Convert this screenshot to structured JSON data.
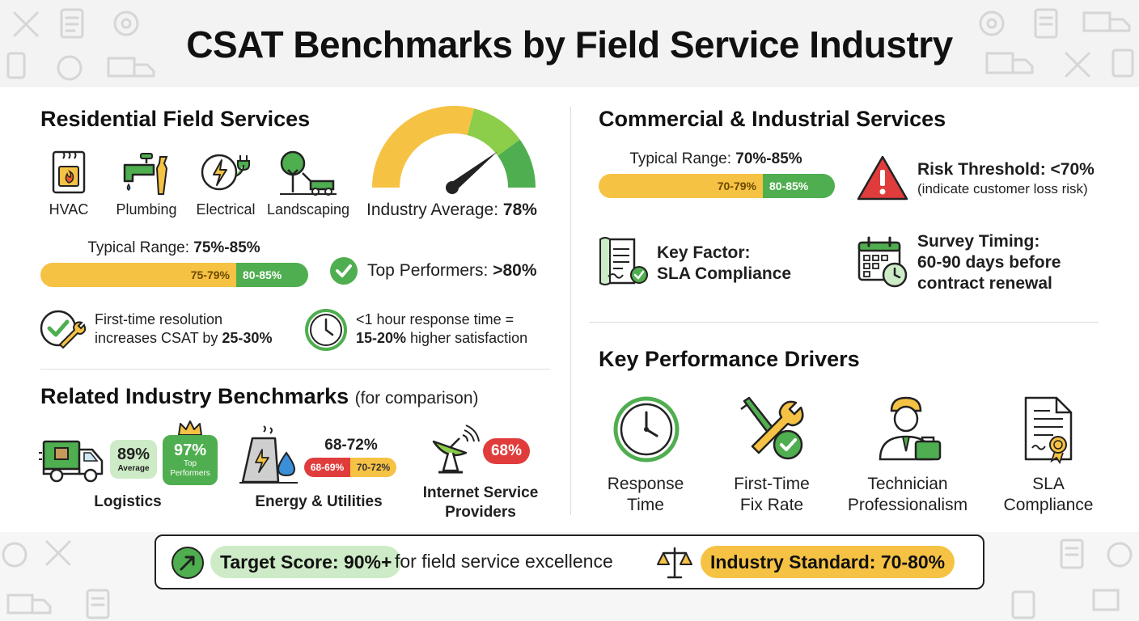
{
  "title": "CSAT Benchmarks by Field Service Industry",
  "residential": {
    "heading": "Residential Field Services",
    "categories": [
      "HVAC",
      "Plumbing",
      "Electrical",
      "Landscaping"
    ],
    "gauge": {
      "label": "Industry Average:",
      "value": "78%",
      "level": 78
    },
    "range": {
      "label": "Typical Range:",
      "value": "75%-85%",
      "seg_low": "75-79%",
      "seg_high": "80-85%"
    },
    "top_performers": {
      "label": "Top Performers:",
      "value": ">80%"
    },
    "fact1": {
      "line1": "First-time resolution",
      "line2_pre": "increases CSAT by ",
      "line2_bold": "25-30%"
    },
    "fact2": {
      "line1": "<1 hour response time =",
      "line2_bold": "15-20%",
      "line2_post": " higher satisfaction"
    }
  },
  "related": {
    "heading": "Related Industry Benchmarks",
    "heading_note": "(for comparison)",
    "logistics": {
      "name": "Logistics",
      "avg_value": "89%",
      "avg_label": "Average",
      "top_value": "97%",
      "top_label_1": "Top",
      "top_label_2": "Performers"
    },
    "energy": {
      "name": "Energy & Utilities",
      "range": "68-72%",
      "seg_low": "68-69%",
      "seg_high": "70-72%"
    },
    "isp": {
      "name_1": "Internet Service",
      "name_2": "Providers",
      "value": "68%"
    }
  },
  "commercial": {
    "heading": "Commercial & Industrial Services",
    "range": {
      "label": "Typical Range:",
      "value": "70%-85%",
      "seg_low": "70-79%",
      "seg_high": "80-85%"
    },
    "risk": {
      "title": "Risk Threshold: <70%",
      "note": "(indicate customer loss risk)"
    },
    "key_factor": {
      "line1": "Key Factor:",
      "line2": "SLA Compliance"
    },
    "survey": {
      "line1": "Survey Timing:",
      "line2": "60-90 days before",
      "line3": "contract renewal"
    }
  },
  "drivers": {
    "heading": "Key Performance Drivers",
    "items": [
      {
        "line1": "Response",
        "line2": "Time"
      },
      {
        "line1": "First-Time",
        "line2": "Fix Rate"
      },
      {
        "line1": "Technician",
        "line2": "Professionalism"
      },
      {
        "line1": "SLA",
        "line2": "Compliance"
      }
    ]
  },
  "footer": {
    "target_bold": "Target Score: 90%+",
    "target_rest": " for field service excellence",
    "standard": "Industry Standard: 70-80%"
  },
  "colors": {
    "yellow": "#f6c244",
    "green": "#4fae4f",
    "red": "#e03c3c",
    "light_green": "#cdebc6"
  }
}
